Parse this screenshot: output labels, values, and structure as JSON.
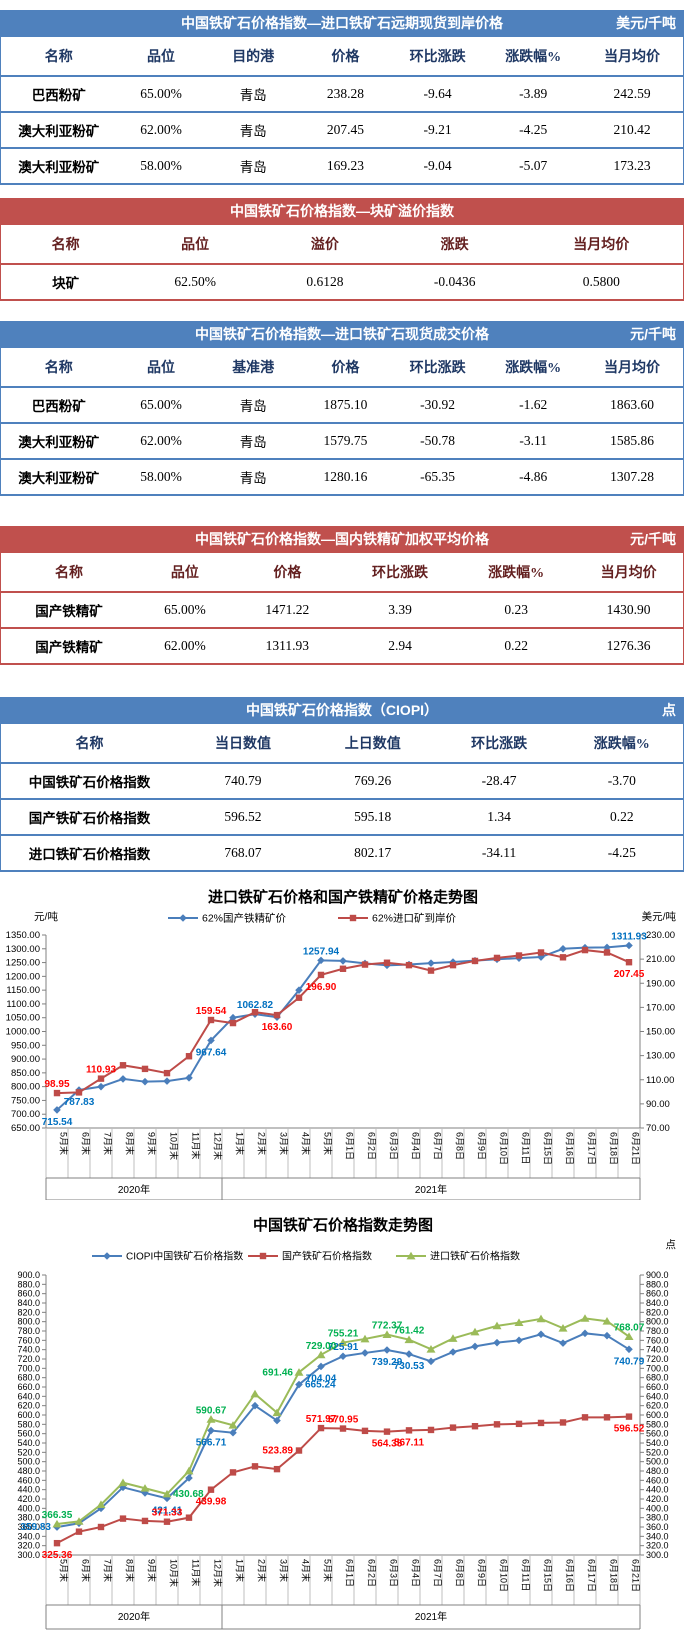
{
  "colors": {
    "blue_theme": "#4f81bd",
    "red_theme": "#c0504d",
    "blue_header_text": "#1f3864",
    "red_header_text": "#631f1f",
    "line_blue": "#4a7ebb",
    "line_red": "#be4b48",
    "line_green": "#9bbb59",
    "label_blue": "#0070c0",
    "label_red": "#ff0000",
    "label_green": "#00b050"
  },
  "tables": [
    {
      "theme": "blue",
      "title": "中国铁矿石价格指数—进口铁矿石远期现货到岸价格",
      "unit": "美元/千吨",
      "columns": [
        "名称",
        "品位",
        "目的港",
        "价格",
        "环比涨跌",
        "涨跌幅%",
        "当月均价"
      ],
      "rows": [
        [
          "巴西粉矿",
          "65.00%",
          "青岛",
          "238.28",
          "-9.64",
          "-3.89",
          "242.59"
        ],
        [
          "澳大利亚粉矿",
          "62.00%",
          "青岛",
          "207.45",
          "-9.21",
          "-4.25",
          "210.42"
        ],
        [
          "澳大利亚粉矿",
          "58.00%",
          "青岛",
          "169.23",
          "-9.04",
          "-5.07",
          "173.23"
        ]
      ]
    },
    {
      "theme": "red",
      "title": "中国铁矿石价格指数—块矿溢价指数",
      "unit": "",
      "columns": [
        "名称",
        "品位",
        "溢价",
        "涨跌",
        "当月均价"
      ],
      "rows": [
        [
          "块矿",
          "62.50%",
          "0.6128",
          "-0.0436",
          "0.5800"
        ]
      ]
    },
    {
      "theme": "blue",
      "title": "中国铁矿石价格指数—进口铁矿石现货成交价格",
      "unit": "元/千吨",
      "columns": [
        "名称",
        "品位",
        "基准港",
        "价格",
        "环比涨跌",
        "涨跌幅%",
        "当月均价"
      ],
      "rows": [
        [
          "巴西粉矿",
          "65.00%",
          "青岛",
          "1875.10",
          "-30.92",
          "-1.62",
          "1863.60"
        ],
        [
          "澳大利亚粉矿",
          "62.00%",
          "青岛",
          "1579.75",
          "-50.78",
          "-3.11",
          "1585.86"
        ],
        [
          "澳大利亚粉矿",
          "58.00%",
          "青岛",
          "1280.16",
          "-65.35",
          "-4.86",
          "1307.28"
        ]
      ]
    },
    {
      "theme": "red",
      "title": "中国铁矿石价格指数—国内铁精矿加权平均价格",
      "unit": "元/千吨",
      "columns": [
        "名称",
        "品位",
        "价格",
        "环比涨跌",
        "涨跌幅%",
        "当月均价"
      ],
      "rows": [
        [
          "国产铁精矿",
          "65.00%",
          "1471.22",
          "3.39",
          "0.23",
          "1430.90"
        ],
        [
          "国产铁精矿",
          "62.00%",
          "1311.93",
          "2.94",
          "0.22",
          "1276.36"
        ]
      ]
    },
    {
      "theme": "blue",
      "title": "中国铁矿石价格指数（CIOPI）",
      "unit": "点",
      "columns": [
        "名称",
        "当日数值",
        "上日数值",
        "环比涨跌",
        "涨跌幅%"
      ],
      "rows": [
        [
          "中国铁矿石价格指数",
          "740.79",
          "769.26",
          "-28.47",
          "-3.70"
        ],
        [
          "国产铁矿石价格指数",
          "596.52",
          "595.18",
          "1.34",
          "0.22"
        ],
        [
          "进口铁矿石价格指数",
          "768.07",
          "802.17",
          "-34.11",
          "-4.25"
        ]
      ]
    }
  ],
  "chart_data": [
    {
      "type": "line",
      "title": "进口铁矿石价格和国产铁精矿价格走势图",
      "left_axis_label": "元/吨",
      "right_axis_label": "美元/吨",
      "left_axis": {
        "min": 650,
        "max": 1350,
        "step": 50,
        "decimals": 2
      },
      "right_axis": {
        "min": 70,
        "max": 230,
        "step": 20,
        "decimals": 2
      },
      "grid": false,
      "legend_position": "top",
      "x": [
        "5月末",
        "6月末",
        "7月末",
        "8月末",
        "9月末",
        "10月末",
        "11月末",
        "12月末",
        "1月末",
        "2月末",
        "3月末",
        "4月末",
        "5月末",
        "6月1日",
        "6月2日",
        "6月3日",
        "6月4日",
        "6月7日",
        "6月8日",
        "6月9日",
        "6月10日",
        "6月11日",
        "6月15日",
        "6月16日",
        "6月17日",
        "6月18日",
        "6月21日"
      ],
      "x_groups": [
        {
          "label": "2020年",
          "span": 8
        },
        {
          "label": "2021年",
          "span": 19
        }
      ],
      "series": [
        {
          "name": "62%国产铁精矿价",
          "axis": "left",
          "marker": "diamond",
          "color": "#4a7ebb",
          "label_color": "#0070c0",
          "values": [
            715.54,
            787.83,
            800,
            828,
            818,
            820,
            832,
            967.64,
            1050,
            1062.82,
            1052,
            1150,
            1257.94,
            1256,
            1247,
            1240,
            1243,
            1248,
            1252,
            1257,
            1262,
            1266,
            1270,
            1300,
            1304,
            1305,
            1311.93
          ],
          "point_labels": [
            {
              "i": 0,
              "text": "715.54",
              "pos": "below"
            },
            {
              "i": 1,
              "text": "787.83",
              "pos": "below"
            },
            {
              "i": 7,
              "text": "967.64",
              "pos": "below"
            },
            {
              "i": 9,
              "text": "1062.82",
              "pos": "above"
            },
            {
              "i": 12,
              "text": "1257.94",
              "pos": "above"
            },
            {
              "i": 26,
              "text": "1311.93",
              "pos": "above"
            }
          ]
        },
        {
          "name": "62%进口矿到岸价",
          "axis": "right",
          "marker": "square",
          "color": "#be4b48",
          "label_color": "#ff0000",
          "values": [
            98.95,
            99.5,
            110.93,
            122,
            119,
            115.5,
            129.5,
            159.54,
            157,
            166,
            163.6,
            178,
            196.9,
            202,
            205.5,
            207,
            205,
            200.5,
            205,
            208.5,
            211,
            213,
            215.5,
            211.5,
            217.5,
            215.5,
            207.45
          ],
          "point_labels": [
            {
              "i": 0,
              "text": "98.95",
              "pos": "above"
            },
            {
              "i": 2,
              "text": "110.93",
              "pos": "above"
            },
            {
              "i": 7,
              "text": "159.54",
              "pos": "above"
            },
            {
              "i": 10,
              "text": "163.60",
              "pos": "below"
            },
            {
              "i": 12,
              "text": "196.90",
              "pos": "below"
            },
            {
              "i": 26,
              "text": "207.45",
              "pos": "below"
            }
          ]
        }
      ]
    },
    {
      "type": "line",
      "title": "中国铁矿石价格指数走势图",
      "left_axis_label": "",
      "right_axis_label": "点",
      "left_axis": {
        "min": 300,
        "max": 900,
        "step": 20,
        "decimals": 1
      },
      "right_axis": {
        "min": 300,
        "max": 900,
        "step": 20,
        "decimals": 1
      },
      "grid": false,
      "legend_position": "top",
      "x": [
        "5月末",
        "6月末",
        "7月末",
        "8月末",
        "9月末",
        "10月末",
        "11月末",
        "12月末",
        "1月末",
        "2月末",
        "3月末",
        "4月末",
        "5月末",
        "6月1日",
        "6月2日",
        "6月3日",
        "6月4日",
        "6月7日",
        "6月8日",
        "6月9日",
        "6月10日",
        "6月11日",
        "6月15日",
        "6月16日",
        "6月17日",
        "6月18日",
        "6月21日"
      ],
      "x_groups": [
        {
          "label": "2020年",
          "span": 8
        },
        {
          "label": "2021年",
          "span": 19
        }
      ],
      "series": [
        {
          "name": "CIOPI中国铁矿石价格指数",
          "axis": "left",
          "marker": "diamond",
          "color": "#4a7ebb",
          "label_color": "#0070c0",
          "values": [
            359.83,
            368,
            400,
            445,
            433,
            421.41,
            465,
            566.71,
            562,
            620,
            588,
            665.24,
            704.04,
            725.91,
            733,
            739.29,
            730.53,
            715,
            735,
            747,
            755,
            760,
            773,
            754,
            775,
            770,
            740.79
          ],
          "point_labels": [
            {
              "i": 0,
              "text": "359.83",
              "pos": "left"
            },
            {
              "i": 5,
              "text": "421.41",
              "pos": "below"
            },
            {
              "i": 7,
              "text": "566.71",
              "pos": "below"
            },
            {
              "i": 11,
              "text": "665.24",
              "pos": "right"
            },
            {
              "i": 12,
              "text": "704.04",
              "pos": "below"
            },
            {
              "i": 13,
              "text": "725.91",
              "pos": "above"
            },
            {
              "i": 15,
              "text": "739.29",
              "pos": "below"
            },
            {
              "i": 16,
              "text": "730.53",
              "pos": "below"
            },
            {
              "i": 26,
              "text": "740.79",
              "pos": "below"
            }
          ]
        },
        {
          "name": "国产铁矿石价格指数",
          "axis": "left",
          "marker": "square",
          "color": "#be4b48",
          "label_color": "#ff0000",
          "values": [
            325.36,
            350,
            360,
            378,
            373,
            371.33,
            380,
            439.98,
            477,
            490,
            484,
            523.89,
            571.97,
            570.95,
            566,
            564.35,
            567.11,
            568,
            573,
            576,
            580,
            581,
            583,
            584,
            595,
            595,
            596.52
          ],
          "point_labels": [
            {
              "i": 0,
              "text": "325.36",
              "pos": "below"
            },
            {
              "i": 5,
              "text": "371.33",
              "pos": "above"
            },
            {
              "i": 7,
              "text": "439.98",
              "pos": "below"
            },
            {
              "i": 11,
              "text": "523.89",
              "pos": "left"
            },
            {
              "i": 12,
              "text": "571.97",
              "pos": "above"
            },
            {
              "i": 13,
              "text": "570.95",
              "pos": "above"
            },
            {
              "i": 15,
              "text": "564.35",
              "pos": "below"
            },
            {
              "i": 16,
              "text": "567.11",
              "pos": "below"
            },
            {
              "i": 26,
              "text": "596.52",
              "pos": "below"
            }
          ]
        },
        {
          "name": "进口铁矿石价格指数",
          "axis": "left",
          "marker": "triangle",
          "color": "#9bbb59",
          "label_color": "#00b050",
          "values": [
            366.35,
            372,
            408,
            455,
            443,
            430.68,
            480,
            590.67,
            578,
            645,
            605,
            691.46,
            729,
            755.21,
            763,
            772.37,
            761.42,
            741,
            764,
            778,
            791,
            798,
            806,
            786,
            807,
            801,
            768.07
          ],
          "point_labels": [
            {
              "i": 0,
              "text": "366.35",
              "pos": "above"
            },
            {
              "i": 5,
              "text": "430.68",
              "pos": "right"
            },
            {
              "i": 7,
              "text": "590.67",
              "pos": "above"
            },
            {
              "i": 11,
              "text": "691.46",
              "pos": "left"
            },
            {
              "i": 12,
              "text": "729.00",
              "pos": "above"
            },
            {
              "i": 13,
              "text": "755.21",
              "pos": "above"
            },
            {
              "i": 15,
              "text": "772.37",
              "pos": "above"
            },
            {
              "i": 16,
              "text": "761.42",
              "pos": "above"
            },
            {
              "i": 26,
              "text": "768.07",
              "pos": "above"
            }
          ]
        }
      ]
    }
  ]
}
